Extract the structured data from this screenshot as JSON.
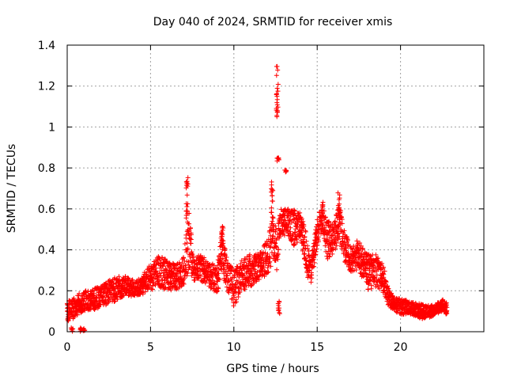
{
  "chart_data": {
    "type": "scatter",
    "title": "Day 040 of 2024, SRMTID for receiver xmis",
    "xlabel": "GPS time / hours",
    "ylabel": "SRMTID / TECUs",
    "xlim": [
      0,
      25
    ],
    "ylim": [
      0,
      1.4
    ],
    "x_ticks": [
      0,
      5,
      10,
      15,
      20
    ],
    "y_ticks": [
      0,
      0.2,
      0.4,
      0.6,
      0.8,
      1,
      1.2,
      1.4
    ],
    "x_tick_labels": [
      "0",
      "5",
      "10",
      "15",
      "20"
    ],
    "y_tick_labels": [
      "0",
      "0.2",
      "0.4",
      "0.6",
      "0.8",
      "1",
      "1.2",
      "1.4"
    ],
    "grid": true,
    "marker": "+",
    "color": "#ff0000",
    "series": [
      {
        "name": "SRMTID",
        "envelope": [
          [
            0.0,
            0.05,
            0.15
          ],
          [
            0.3,
            0.06,
            0.16
          ],
          [
            0.6,
            0.08,
            0.18
          ],
          [
            1.0,
            0.1,
            0.2
          ],
          [
            1.5,
            0.1,
            0.21
          ],
          [
            2.0,
            0.12,
            0.22
          ],
          [
            2.5,
            0.13,
            0.25
          ],
          [
            3.0,
            0.15,
            0.27
          ],
          [
            3.5,
            0.18,
            0.27
          ],
          [
            4.0,
            0.17,
            0.25
          ],
          [
            4.5,
            0.18,
            0.28
          ],
          [
            5.0,
            0.2,
            0.33
          ],
          [
            5.5,
            0.22,
            0.37
          ],
          [
            6.0,
            0.2,
            0.35
          ],
          [
            6.5,
            0.2,
            0.33
          ],
          [
            7.0,
            0.22,
            0.38
          ],
          [
            7.3,
            0.3,
            0.6
          ],
          [
            7.6,
            0.25,
            0.35
          ],
          [
            8.0,
            0.25,
            0.38
          ],
          [
            8.5,
            0.22,
            0.35
          ],
          [
            9.0,
            0.18,
            0.33
          ],
          [
            9.3,
            0.3,
            0.5
          ],
          [
            9.6,
            0.2,
            0.35
          ],
          [
            10.0,
            0.12,
            0.3
          ],
          [
            10.5,
            0.2,
            0.35
          ],
          [
            11.0,
            0.22,
            0.38
          ],
          [
            11.5,
            0.25,
            0.38
          ],
          [
            12.0,
            0.28,
            0.45
          ],
          [
            12.3,
            0.3,
            0.55
          ],
          [
            12.6,
            0.3,
            0.5
          ],
          [
            12.8,
            0.45,
            0.6
          ],
          [
            13.2,
            0.48,
            0.6
          ],
          [
            13.6,
            0.42,
            0.6
          ],
          [
            14.0,
            0.45,
            0.58
          ],
          [
            14.3,
            0.3,
            0.5
          ],
          [
            14.6,
            0.22,
            0.35
          ],
          [
            15.0,
            0.4,
            0.55
          ],
          [
            15.3,
            0.5,
            0.65
          ],
          [
            15.6,
            0.35,
            0.55
          ],
          [
            16.0,
            0.38,
            0.55
          ],
          [
            16.3,
            0.45,
            0.65
          ],
          [
            16.6,
            0.35,
            0.5
          ],
          [
            17.0,
            0.28,
            0.42
          ],
          [
            17.5,
            0.3,
            0.45
          ],
          [
            18.0,
            0.2,
            0.38
          ],
          [
            18.5,
            0.22,
            0.38
          ],
          [
            19.0,
            0.18,
            0.32
          ],
          [
            19.3,
            0.12,
            0.2
          ],
          [
            19.7,
            0.1,
            0.17
          ],
          [
            20.0,
            0.08,
            0.16
          ],
          [
            20.5,
            0.09,
            0.15
          ],
          [
            21.0,
            0.07,
            0.14
          ],
          [
            21.5,
            0.06,
            0.13
          ],
          [
            22.0,
            0.08,
            0.13
          ],
          [
            22.5,
            0.1,
            0.16
          ],
          [
            22.8,
            0.08,
            0.14
          ]
        ],
        "spikes": [
          [
            7.2,
            0.55,
            0.76
          ],
          [
            9.3,
            0.4,
            0.53
          ],
          [
            12.3,
            0.55,
            0.74
          ],
          [
            12.6,
            1.05,
            1.3
          ],
          [
            12.65,
            0.83,
            0.85
          ],
          [
            13.1,
            0.78,
            0.79
          ],
          [
            15.3,
            0.55,
            0.64
          ],
          [
            16.3,
            0.55,
            0.68
          ],
          [
            12.7,
            0.08,
            0.15
          ],
          [
            0.3,
            0.0,
            0.02
          ],
          [
            0.8,
            0.0,
            0.02
          ],
          [
            1.0,
            0.0,
            0.02
          ]
        ]
      }
    ]
  }
}
